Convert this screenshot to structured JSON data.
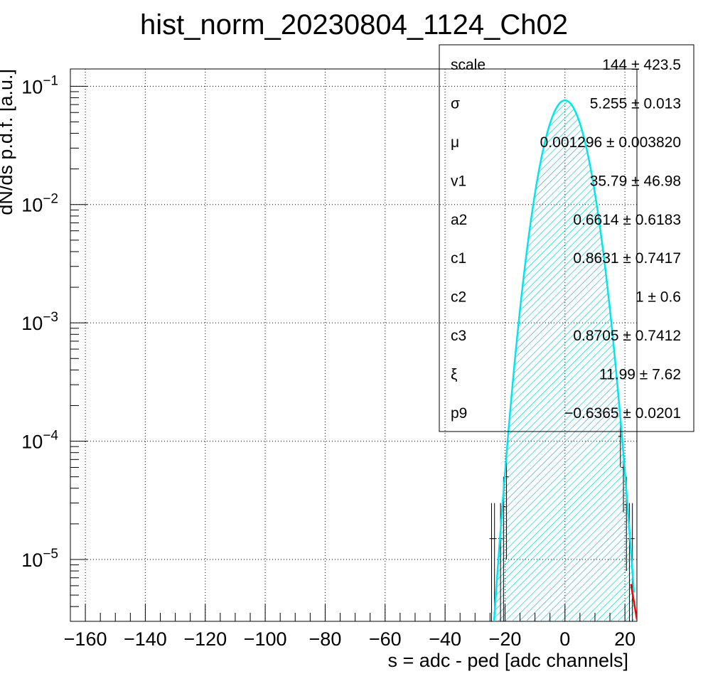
{
  "chart_data": {
    "type": "histogram",
    "title": "hist_norm_20230804_1124_Ch02",
    "xlabel": "s = adc - ped [adc channels]",
    "ylabel": "dN/ds p.d.f. [a.u.]",
    "xlim": [
      -165,
      24
    ],
    "ylim": [
      3e-06,
      0.14
    ],
    "yscale": "log",
    "grid": true,
    "x_ticks": [
      -160,
      -140,
      -120,
      -100,
      -80,
      -60,
      -40,
      -20,
      0,
      20
    ],
    "y_ticks": [
      {
        "value": 1e-05,
        "base": "10",
        "exp": "−5"
      },
      {
        "value": 0.0001,
        "base": "10",
        "exp": "−4"
      },
      {
        "value": 0.001,
        "base": "10",
        "exp": "−3"
      },
      {
        "value": 0.01,
        "base": "10",
        "exp": "−2"
      },
      {
        "value": 0.1,
        "base": "10",
        "exp": "−1"
      }
    ],
    "fit": {
      "mu": 0,
      "sigma": 5.255,
      "peak": 0.076,
      "color": "#00e5ee",
      "range": [
        -25,
        23
      ]
    },
    "tail_fit": {
      "color": "#ff0000",
      "points": [
        [
          22.0,
          6.2e-06
        ],
        [
          23.0,
          4.4e-06
        ],
        [
          24.0,
          3.1e-06
        ]
      ]
    },
    "data_points": [
      {
        "x": -24.5,
        "y": 1.5e-05,
        "lo": 3e-06,
        "hi": 3e-05
      },
      {
        "x": -23.5,
        "y": 1.5e-05,
        "lo": 3e-06,
        "hi": 3e-05
      },
      {
        "x": -21.5,
        "y": 1.5e-05,
        "lo": 3e-06,
        "hi": 3e-05
      },
      {
        "x": -20.5,
        "y": 2.8e-05,
        "lo": 3e-06,
        "hi": 5e-05
      },
      {
        "x": -19.5,
        "y": 5e-05,
        "lo": 1e-05,
        "hi": 8e-05
      },
      {
        "x": 18.5,
        "y": 0.00011,
        "lo": 6e-05,
        "hi": 0.00016
      },
      {
        "x": 19.5,
        "y": 6e-05,
        "lo": 2.5e-05,
        "hi": 9e-05
      },
      {
        "x": 20.5,
        "y": 2.9e-05,
        "lo": 8e-06,
        "hi": 5e-05
      },
      {
        "x": 21.5,
        "y": 1.5e-05,
        "lo": 3e-06,
        "hi": 3e-05
      },
      {
        "x": 22.5,
        "y": 1.5e-05,
        "lo": 3e-06,
        "hi": 3e-05
      }
    ],
    "stats": [
      {
        "name": "scale",
        "value": "144 ± 423.5"
      },
      {
        "name": "σ",
        "value": "5.255 ± 0.013"
      },
      {
        "name": "μ",
        "value": "0.001296 ± 0.003820"
      },
      {
        "name": "v1",
        "value": "35.79 ± 46.98"
      },
      {
        "name": "a2",
        "value": "0.6614 ± 0.6183"
      },
      {
        "name": "c1",
        "value": "0.8631 ± 0.7417"
      },
      {
        "name": "c2",
        "value": "1 ± 0.6"
      },
      {
        "name": "c3",
        "value": "0.8705 ± 0.7412"
      },
      {
        "name": "ξ",
        "value": "11.99 ± 7.62"
      },
      {
        "name": "p9",
        "value": "−0.6365 ± 0.0201"
      }
    ]
  }
}
